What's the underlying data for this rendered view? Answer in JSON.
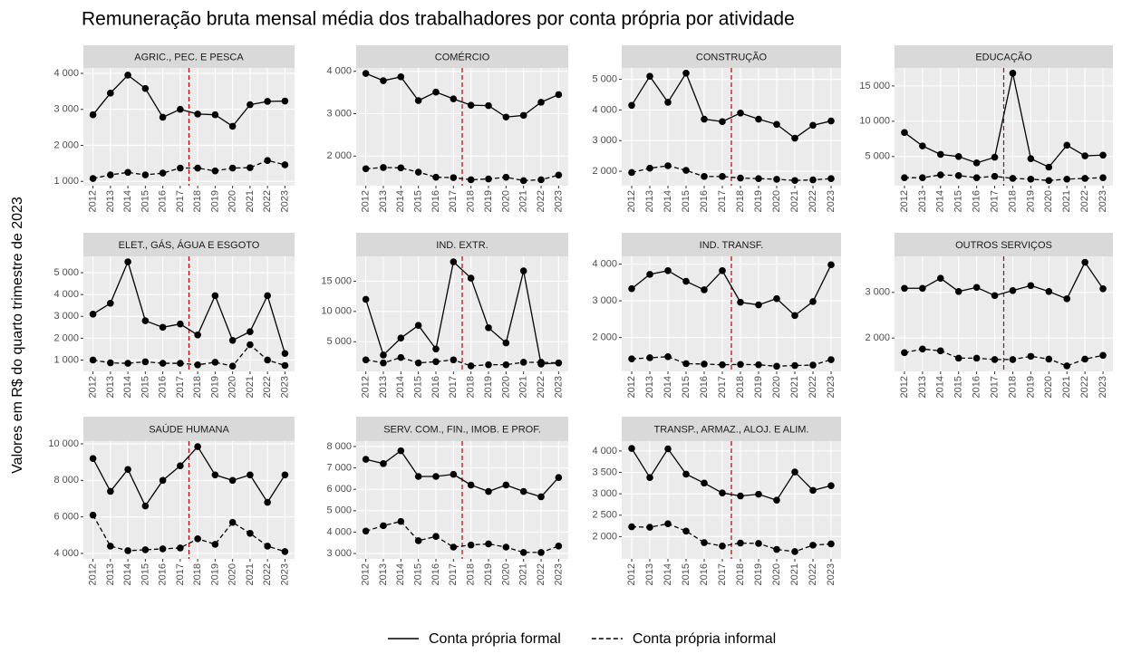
{
  "chart_data": {
    "type": "line",
    "title": "Remuneração bruta mensal média dos trabalhadores por conta própria por atividade",
    "ylabel": "Valores em R$ do quarto trimestre de 2023",
    "x": [
      2012,
      2013,
      2014,
      2015,
      2016,
      2017,
      2018,
      2019,
      2020,
      2021,
      2022,
      2023
    ],
    "xlim": [
      2011.45,
      2023.55
    ],
    "xticks": [
      2012,
      2013,
      2014,
      2015,
      2016,
      2017,
      2018,
      2019,
      2020,
      2021,
      2022,
      2023
    ],
    "vline": 2017.5,
    "vline_color": "#c00000",
    "grid": true,
    "legend_position": "bottom",
    "series_styles": [
      {
        "name": "Conta própria formal",
        "color": "#000000",
        "dash": "solid"
      },
      {
        "name": "Conta própria informal",
        "color": "#000000",
        "dash": "dashed"
      }
    ],
    "panels": [
      {
        "title": "AGRIC., PEC. E PESCA",
        "ylim": [
          880,
          4150
        ],
        "yticks": [
          {
            "value": 1000,
            "label": "1 000"
          },
          {
            "value": 2000,
            "label": "2 000"
          },
          {
            "value": 3000,
            "label": "3 000"
          },
          {
            "value": 4000,
            "label": "4 000"
          }
        ],
        "series": [
          {
            "values": [
              2850,
              3450,
              3950,
              3580,
              2780,
              3000,
              2870,
              2850,
              2530,
              3130,
              3220,
              3230
            ]
          },
          {
            "values": [
              1080,
              1180,
              1250,
              1180,
              1230,
              1370,
              1370,
              1290,
              1370,
              1380,
              1580,
              1460
            ]
          }
        ]
      },
      {
        "title": "COMÉRCIO",
        "ylim": [
          1300,
          4080
        ],
        "yticks": [
          {
            "value": 2000,
            "label": "2 000"
          },
          {
            "value": 3000,
            "label": "3 000"
          },
          {
            "value": 4000,
            "label": "4 000"
          }
        ],
        "series": [
          {
            "values": [
              3950,
              3780,
              3870,
              3310,
              3510,
              3350,
              3200,
              3190,
              2920,
              2960,
              3270,
              3450
            ]
          },
          {
            "values": [
              1700,
              1730,
              1720,
              1620,
              1500,
              1490,
              1440,
              1460,
              1500,
              1420,
              1440,
              1550
            ]
          }
        ]
      },
      {
        "title": "CONSTRUÇÃO",
        "ylim": [
          1530,
          5370
        ],
        "yticks": [
          {
            "value": 2000,
            "label": "2 000"
          },
          {
            "value": 3000,
            "label": "3 000"
          },
          {
            "value": 4000,
            "label": "4 000"
          },
          {
            "value": 5000,
            "label": "5 000"
          }
        ],
        "series": [
          {
            "values": [
              4150,
              5100,
              4250,
              5200,
              3700,
              3620,
              3900,
              3700,
              3530,
              3080,
              3500,
              3640
            ]
          },
          {
            "values": [
              1960,
              2100,
              2180,
              2030,
              1830,
              1830,
              1780,
              1760,
              1740,
              1700,
              1720,
              1760
            ]
          }
        ]
      },
      {
        "title": "EDUCAÇÃO",
        "ylim": [
          870,
          17550
        ],
        "yticks": [
          {
            "value": 5000,
            "label": "5 000"
          },
          {
            "value": 10000,
            "label": "10 000"
          },
          {
            "value": 15000,
            "label": "15 000"
          }
        ],
        "series": [
          {
            "values": [
              8400,
              6500,
              5300,
              5000,
              4100,
              4900,
              16800,
              4700,
              3500,
              6600,
              5100,
              5200
            ]
          },
          {
            "values": [
              2000,
              2000,
              2400,
              2300,
              2000,
              2200,
              1900,
              1800,
              1600,
              1800,
              1900,
              2000
            ]
          }
        ]
      },
      {
        "title": "ELET., GÁS, ÁGUA E ESGOTO",
        "ylim": [
          480,
          5750
        ],
        "yticks": [
          {
            "value": 1000,
            "label": "1 000"
          },
          {
            "value": 2000,
            "label": "2 000"
          },
          {
            "value": 3000,
            "label": "3 000"
          },
          {
            "value": 4000,
            "label": "4 000"
          },
          {
            "value": 5000,
            "label": "5 000"
          }
        ],
        "series": [
          {
            "values": [
              3100,
              3600,
              5500,
              2800,
              2500,
              2650,
              2150,
              3950,
              1900,
              2300,
              3950,
              1300
            ]
          },
          {
            "values": [
              1000,
              870,
              850,
              920,
              850,
              850,
              780,
              900,
              720,
              1700,
              1000,
              750
            ]
          }
        ]
      },
      {
        "title": "IND. EXTR.",
        "ylim": [
          100,
          19100
        ],
        "yticks": [
          {
            "value": 5000,
            "label": "5 000"
          },
          {
            "value": 10000,
            "label": "10 000"
          },
          {
            "value": 15000,
            "label": "15 000"
          }
        ],
        "series": [
          {
            "values": [
              12000,
              2800,
              5600,
              7700,
              3800,
              18200,
              15500,
              7300,
              4800,
              16700,
              1300,
              1500
            ]
          },
          {
            "values": [
              2000,
              1500,
              2400,
              1500,
              1700,
              2000,
              1000,
              1200,
              1200,
              1600,
              1600,
              1500
            ]
          }
        ]
      },
      {
        "title": "IND. TRANSF.",
        "ylim": [
          1080,
          4210
        ],
        "yticks": [
          {
            "value": 2000,
            "label": "2 000"
          },
          {
            "value": 3000,
            "label": "3 000"
          },
          {
            "value": 4000,
            "label": "4 000"
          }
        ],
        "series": [
          {
            "values": [
              3330,
              3720,
              3820,
              3530,
              3300,
              3820,
              2960,
              2890,
              3060,
              2600,
              2980,
              3980
            ]
          },
          {
            "values": [
              1420,
              1450,
              1480,
              1290,
              1280,
              1260,
              1270,
              1260,
              1220,
              1240,
              1250,
              1400
            ]
          }
        ]
      },
      {
        "title": "OUTROS SERVIÇOS",
        "ylim": [
          1270,
          3790
        ],
        "yticks": [
          {
            "value": 2000,
            "label": "2 000"
          },
          {
            "value": 3000,
            "label": "3 000"
          }
        ],
        "series": [
          {
            "values": [
              3090,
              3090,
              3310,
              3020,
              3110,
              2930,
              3040,
              3150,
              3020,
              2860,
              3660,
              3080
            ]
          },
          {
            "values": [
              1680,
              1760,
              1720,
              1560,
              1560,
              1530,
              1530,
              1600,
              1540,
              1390,
              1540,
              1620
            ]
          }
        ]
      },
      {
        "title": "SAÚDE HUMANA",
        "ylim": [
          3700,
          10150
        ],
        "yticks": [
          {
            "value": 4000,
            "label": "4 000"
          },
          {
            "value": 6000,
            "label": "6 000"
          },
          {
            "value": 8000,
            "label": "8 000"
          },
          {
            "value": 10000,
            "label": "10 000"
          }
        ],
        "series": [
          {
            "values": [
              9200,
              7400,
              8600,
              6600,
              8000,
              8800,
              9850,
              8300,
              8000,
              8300,
              6800,
              8300
            ]
          },
          {
            "values": [
              6100,
              4400,
              4150,
              4200,
              4250,
              4300,
              4800,
              4500,
              5700,
              5100,
              4400,
              4100
            ]
          }
        ]
      },
      {
        "title": "SERV. COM., FIN., IMOB. E PROF.",
        "ylim": [
          2750,
          8250
        ],
        "yticks": [
          {
            "value": 3000,
            "label": "3 000"
          },
          {
            "value": 4000,
            "label": "4 000"
          },
          {
            "value": 5000,
            "label": "5 000"
          },
          {
            "value": 6000,
            "label": "6 000"
          },
          {
            "value": 7000,
            "label": "7 000"
          },
          {
            "value": 8000,
            "label": "8 000"
          }
        ],
        "series": [
          {
            "values": [
              7400,
              7200,
              7800,
              6600,
              6600,
              6700,
              6200,
              5900,
              6200,
              5900,
              5650,
              6550
            ]
          },
          {
            "values": [
              4050,
              4300,
              4500,
              3600,
              3800,
              3300,
              3400,
              3450,
              3300,
              3050,
              3050,
              3350
            ]
          }
        ]
      },
      {
        "title": "TRANSP., ARMAZ., ALOJ. E ALIM.",
        "ylim": [
          1480,
          4230
        ],
        "yticks": [
          {
            "value": 2000,
            "label": "2 000"
          },
          {
            "value": 2500,
            "label": "2 500"
          },
          {
            "value": 3000,
            "label": "3 000"
          },
          {
            "value": 3500,
            "label": "3 500"
          },
          {
            "value": 4000,
            "label": "4 000"
          }
        ],
        "series": [
          {
            "values": [
              4060,
              3380,
              4050,
              3460,
              3250,
              3020,
              2950,
              2990,
              2850,
              3510,
              3080,
              3190
            ]
          },
          {
            "values": [
              2230,
              2220,
              2300,
              2130,
              1860,
              1780,
              1850,
              1840,
              1700,
              1650,
              1800,
              1830
            ]
          }
        ]
      }
    ]
  }
}
